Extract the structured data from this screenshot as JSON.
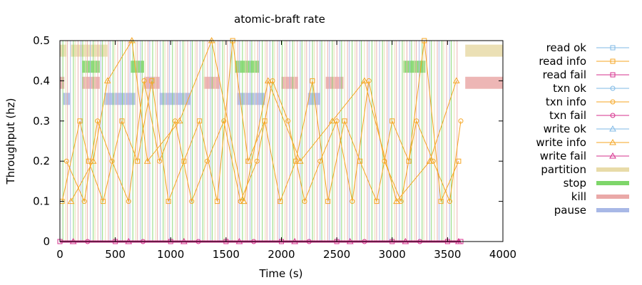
{
  "chart_data": {
    "type": "scatter",
    "title": "atomic-braft rate",
    "xlabel": "Time (s)",
    "ylabel": "Throughput (hz)",
    "xlim": [
      0,
      4000
    ],
    "ylim": [
      0,
      0.5
    ],
    "xticks": [
      "0",
      "500",
      "1000",
      "1500",
      "2000",
      "2500",
      "3000",
      "3500",
      "4000"
    ],
    "yticks": [
      "0",
      "0.1",
      "0.2",
      "0.3",
      "0.4",
      "0.5"
    ],
    "grid": false,
    "legend_position": "right",
    "legend": [
      {
        "key": "read_ok",
        "label": "read ok",
        "color": "#7fb9e6",
        "marker": "square-open"
      },
      {
        "key": "read_info",
        "label": "read info",
        "color": "#f5a623",
        "marker": "square-open"
      },
      {
        "key": "read_fail",
        "label": "read fail",
        "color": "#d6308e",
        "marker": "square-open"
      },
      {
        "key": "txn_ok",
        "label": "txn ok",
        "color": "#7fb9e6",
        "marker": "circle-open"
      },
      {
        "key": "txn_info",
        "label": "txn info",
        "color": "#f5a623",
        "marker": "circle-open"
      },
      {
        "key": "txn_fail",
        "label": "txn fail",
        "color": "#d6308e",
        "marker": "circle-open"
      },
      {
        "key": "write_ok",
        "label": "write ok",
        "color": "#7fb9e6",
        "marker": "triangle-open"
      },
      {
        "key": "write_info",
        "label": "write info",
        "color": "#f5a623",
        "marker": "triangle-open"
      },
      {
        "key": "write_fail",
        "label": "write fail",
        "color": "#d6308e",
        "marker": "triangle-open"
      },
      {
        "key": "partition",
        "label": "partition",
        "color": "#e8dba8",
        "marker": "band"
      },
      {
        "key": "stop",
        "label": "stop",
        "color": "#7ed66a",
        "marker": "band"
      },
      {
        "key": "kill",
        "label": "kill",
        "color": "#eaa9a8",
        "marker": "band"
      },
      {
        "key": "pause",
        "label": "pause",
        "color": "#a8b8e6",
        "marker": "band"
      }
    ],
    "nemesis_intervals": {
      "partition": [
        [
          0,
          60
        ],
        [
          100,
          430
        ],
        [
          3660,
          4000
        ]
      ],
      "stop": [
        [
          200,
          360
        ],
        [
          640,
          760
        ],
        [
          1580,
          1800
        ],
        [
          3100,
          3300
        ]
      ],
      "kill": [
        [
          0,
          40
        ],
        [
          200,
          360
        ],
        [
          760,
          900
        ],
        [
          1300,
          1440
        ],
        [
          2000,
          2150
        ],
        [
          2400,
          2560
        ],
        [
          3660,
          4000
        ]
      ],
      "pause": [
        [
          30,
          90
        ],
        [
          400,
          680
        ],
        [
          900,
          1180
        ],
        [
          1600,
          1850
        ],
        [
          2240,
          2350
        ]
      ]
    },
    "series": [
      {
        "name": "read info",
        "x": [
          20,
          180,
          260,
          390,
          560,
          700,
          830,
          980,
          1120,
          1260,
          1420,
          1560,
          1700,
          1850,
          1990,
          2130,
          2280,
          2420,
          2570,
          2710,
          2860,
          3000,
          3150,
          3290,
          3440,
          3600
        ],
        "y": [
          0.1,
          0.3,
          0.2,
          0.1,
          0.3,
          0.2,
          0.4,
          0.1,
          0.2,
          0.3,
          0.1,
          0.5,
          0.2,
          0.3,
          0.1,
          0.2,
          0.4,
          0.1,
          0.3,
          0.2,
          0.1,
          0.3,
          0.2,
          0.5,
          0.1,
          0.2
        ]
      },
      {
        "name": "txn info",
        "x": [
          60,
          220,
          340,
          470,
          620,
          760,
          900,
          1040,
          1190,
          1330,
          1480,
          1630,
          1780,
          1920,
          2060,
          2210,
          2350,
          2500,
          2640,
          2790,
          2930,
          3080,
          3220,
          3370,
          3520,
          3620
        ],
        "y": [
          0.2,
          0.1,
          0.3,
          0.2,
          0.1,
          0.4,
          0.2,
          0.3,
          0.1,
          0.2,
          0.3,
          0.1,
          0.2,
          0.4,
          0.3,
          0.1,
          0.2,
          0.3,
          0.1,
          0.4,
          0.2,
          0.1,
          0.3,
          0.2,
          0.1,
          0.3
        ]
      },
      {
        "name": "write info",
        "x": [
          100,
          300,
          430,
          650,
          790,
          1080,
          1370,
          1660,
          1880,
          2170,
          2460,
          2750,
          3040,
          3340,
          3580
        ],
        "y": [
          0.1,
          0.2,
          0.4,
          0.5,
          0.2,
          0.3,
          0.5,
          0.1,
          0.4,
          0.2,
          0.3,
          0.4,
          0.1,
          0.2,
          0.4
        ]
      },
      {
        "name": "read fail",
        "x": [
          0,
          500,
          1000,
          1500,
          2000,
          2500,
          3000,
          3500,
          3620
        ],
        "y": [
          0,
          0,
          0,
          0,
          0,
          0,
          0,
          0,
          0
        ]
      },
      {
        "name": "txn fail",
        "x": [
          250,
          750,
          1250,
          1750,
          2250,
          2750,
          3250
        ],
        "y": [
          0,
          0,
          0,
          0,
          0,
          0,
          0
        ]
      },
      {
        "name": "write fail",
        "x": [
          120,
          620,
          1120,
          1620,
          2120,
          2620,
          3120,
          3600
        ],
        "y": [
          0,
          0,
          0,
          0,
          0,
          0,
          0,
          0
        ]
      }
    ]
  }
}
